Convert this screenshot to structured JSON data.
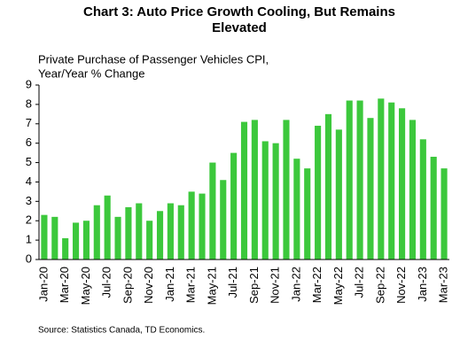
{
  "chart_data": {
    "type": "bar",
    "title": [
      "Chart 3: Auto Price Growth Cooling, But Remains",
      "Elevated"
    ],
    "y_label": [
      "Private Purchase of Passenger Vehicles CPI,",
      "Year/Year % Change"
    ],
    "source": "Source: Statistics Canada, TD Economics.",
    "categories": [
      "Jan-20",
      null,
      "Mar-20",
      null,
      "May-20",
      null,
      "Jul-20",
      null,
      "Sep-20",
      null,
      "Nov-20",
      null,
      "Jan-21",
      null,
      "Mar-21",
      null,
      "May-21",
      null,
      "Jul-21",
      null,
      "Sep-21",
      null,
      "Nov-21",
      null,
      "Jan-22",
      null,
      "Mar-22",
      null,
      "May-22",
      null,
      "Jul-22",
      null,
      "Sep-22",
      null,
      "Nov-22",
      null,
      "Jan-23",
      null,
      "Mar-23"
    ],
    "values": [
      2.3,
      2.2,
      1.1,
      1.9,
      2.0,
      2.8,
      3.3,
      2.2,
      2.7,
      2.9,
      2.0,
      2.5,
      2.9,
      2.8,
      3.5,
      3.4,
      5.0,
      4.1,
      5.5,
      7.1,
      7.2,
      6.1,
      6.0,
      7.2,
      5.2,
      4.7,
      6.9,
      7.5,
      6.7,
      8.2,
      8.2,
      7.3,
      8.3,
      8.1,
      7.8,
      7.2,
      6.2,
      5.3,
      4.7
    ],
    "color": "#3cc83c",
    "ylim": [
      0,
      9
    ],
    "yticks": [
      0,
      1,
      2,
      3,
      4,
      5,
      6,
      7,
      8,
      9
    ],
    "grid": false
  }
}
